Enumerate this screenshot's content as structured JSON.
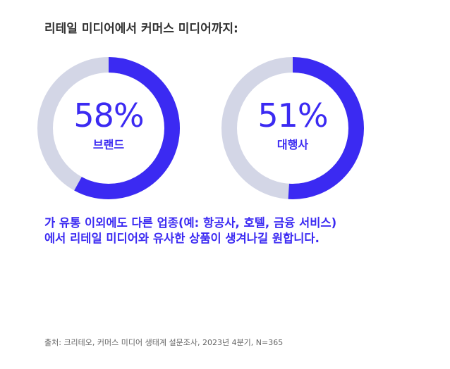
{
  "title": "리테일 미디어에서 커머스 미디어까지:",
  "chart_data": {
    "type": "pie",
    "charts": [
      {
        "label": "브랜드",
        "value": 58,
        "display": "58%"
      },
      {
        "label": "대행사",
        "value": 51,
        "display": "51%"
      }
    ]
  },
  "colors": {
    "accent": "#3b2af2",
    "track": "#d3d6e6"
  },
  "statement": {
    "line1": "가 유통 이외에도 다른 업종(예: 항공사, 호텔, 금융 서비스)",
    "line2": "에서 리테일 미디어와 유사한 상품이 생겨나길 원합니다."
  },
  "source": "출처: 크리테오, 커머스 미디어 생태계 설문조사, 2023년 4분기, N=365"
}
